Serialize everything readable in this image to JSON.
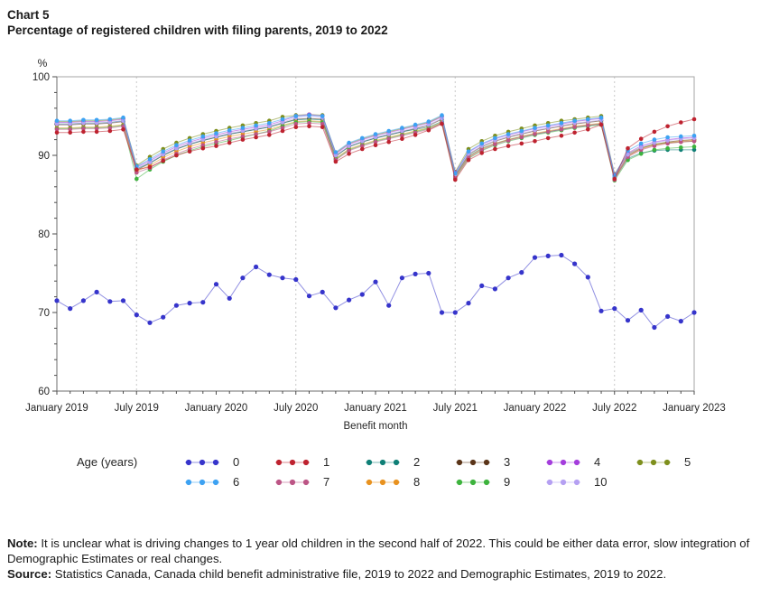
{
  "header": {
    "chart_label": "Chart 5",
    "title": "Percentage of registered children with filing parents, 2019 to 2022"
  },
  "chart_data": {
    "type": "line",
    "title": "Percentage of registered children with filing parents, 2019 to 2022",
    "xlabel": "Benefit month",
    "ylabel": "%",
    "ylim": [
      60,
      100
    ],
    "y_major_ticks": [
      60,
      70,
      80,
      90,
      100
    ],
    "y_minor_step": 2,
    "x_start": "January 2019",
    "x_end": "January 2023",
    "x_frequency": "monthly",
    "x_months_span": 48,
    "x_tick_labels": [
      "January 2019",
      "July 2019",
      "January 2020",
      "July 2020",
      "January 2021",
      "July 2021",
      "January 2022",
      "July 2022",
      "January 2023"
    ],
    "x_label_months": [
      0,
      6,
      12,
      18,
      24,
      30,
      36,
      42,
      48
    ],
    "gridline_months": [
      6,
      18,
      30,
      42
    ],
    "grid": "vertical-dashed-july",
    "legend_title": "Age (years)",
    "legend_position": "bottom",
    "series": [
      {
        "label": "0",
        "color": "#3634cb",
        "values": [
          71.5,
          70.5,
          71.5,
          72.6,
          71.4,
          71.5,
          69.7,
          68.7,
          69.4,
          70.9,
          71.2,
          71.3,
          73.6,
          71.8,
          74.4,
          75.8,
          74.8,
          74.4,
          74.2,
          72.1,
          72.6,
          70.6,
          71.6,
          72.3,
          73.9,
          70.9,
          74.4,
          74.9,
          75.0,
          70.0,
          70.0,
          71.2,
          73.4,
          73.0,
          74.4,
          75.1,
          77.0,
          77.2,
          77.3,
          76.2,
          74.5,
          70.2,
          70.5,
          69.0,
          70.3,
          68.1,
          69.5,
          68.9,
          70.0
        ]
      },
      {
        "label": "1",
        "color": "#be222f",
        "values": [
          92.9,
          92.9,
          93.0,
          93.0,
          93.1,
          93.3,
          88.2,
          88.5,
          89.3,
          90.0,
          90.5,
          90.9,
          91.2,
          91.6,
          92.0,
          92.3,
          92.6,
          93.1,
          93.6,
          93.7,
          93.6,
          89.2,
          90.2,
          90.8,
          91.3,
          91.7,
          92.1,
          92.6,
          93.2,
          94.0,
          86.9,
          89.4,
          90.3,
          90.8,
          91.2,
          91.5,
          91.8,
          92.2,
          92.5,
          92.9,
          93.3,
          93.9,
          87.0,
          90.9,
          92.1,
          93.0,
          93.7,
          94.2,
          94.6
        ]
      },
      {
        "label": "2",
        "color": "#0f7f76",
        "values": [
          94.0,
          94.0,
          94.1,
          94.1,
          94.2,
          94.4,
          88.3,
          89.0,
          90.0,
          90.8,
          91.4,
          91.9,
          92.3,
          92.7,
          93.0,
          93.3,
          93.6,
          94.1,
          94.5,
          94.6,
          94.5,
          89.9,
          91.1,
          91.7,
          92.2,
          92.6,
          93.0,
          93.3,
          93.6,
          94.3,
          87.4,
          89.9,
          90.9,
          91.5,
          92.0,
          92.4,
          92.7,
          93.0,
          93.3,
          93.6,
          93.8,
          94.0,
          87.1,
          89.6,
          90.3,
          90.6,
          90.7,
          90.7,
          90.7
        ]
      },
      {
        "label": "3",
        "color": "#5a3418",
        "values": [
          93.9,
          93.9,
          94.0,
          94.0,
          94.1,
          94.3,
          88.1,
          89.0,
          90.0,
          90.8,
          91.4,
          91.9,
          92.3,
          92.7,
          93.0,
          93.3,
          93.6,
          94.1,
          94.6,
          94.7,
          94.6,
          89.9,
          91.1,
          91.7,
          92.2,
          92.6,
          93.0,
          93.4,
          93.8,
          94.6,
          87.5,
          90.1,
          91.1,
          91.8,
          92.3,
          92.7,
          93.1,
          93.4,
          93.7,
          94.0,
          94.2,
          94.4,
          87.2,
          90.0,
          90.9,
          91.4,
          91.7,
          91.9,
          92.0
        ]
      },
      {
        "label": "4",
        "color": "#a43ddc",
        "values": [
          94.2,
          94.2,
          94.3,
          94.3,
          94.4,
          94.6,
          88.5,
          89.3,
          90.3,
          91.1,
          91.7,
          92.2,
          92.6,
          93.0,
          93.3,
          93.6,
          93.9,
          94.4,
          95.0,
          95.2,
          95.0,
          90.2,
          91.4,
          92.0,
          92.5,
          92.9,
          93.3,
          93.7,
          94.1,
          94.9,
          87.8,
          90.4,
          91.4,
          92.1,
          92.6,
          93.0,
          93.4,
          93.7,
          94.0,
          94.3,
          94.5,
          94.7,
          87.5,
          90.3,
          91.2,
          91.7,
          92.0,
          92.2,
          92.3
        ]
      },
      {
        "label": "5",
        "color": "#7e8f1d",
        "values": [
          94.3,
          94.3,
          94.4,
          94.4,
          94.5,
          94.7,
          88.7,
          89.8,
          90.8,
          91.6,
          92.2,
          92.7,
          93.1,
          93.5,
          93.8,
          94.1,
          94.4,
          94.9,
          95.1,
          95.2,
          95.1,
          90.3,
          91.5,
          92.1,
          92.6,
          93.0,
          93.4,
          93.8,
          94.2,
          95.0,
          87.9,
          90.8,
          91.8,
          92.5,
          93.0,
          93.4,
          93.8,
          94.1,
          94.4,
          94.6,
          94.8,
          95.0,
          87.6,
          90.2,
          91.0,
          91.4,
          91.6,
          91.7,
          91.8
        ]
      },
      {
        "label": "6",
        "color": "#3da2f2",
        "values": [
          94.4,
          94.4,
          94.5,
          94.5,
          94.6,
          94.8,
          88.6,
          89.5,
          90.5,
          91.3,
          91.9,
          92.4,
          92.8,
          93.2,
          93.5,
          93.8,
          94.1,
          94.6,
          95.0,
          95.1,
          95.0,
          90.4,
          91.6,
          92.2,
          92.7,
          93.1,
          93.5,
          93.9,
          94.3,
          95.1,
          87.7,
          90.5,
          91.5,
          92.2,
          92.7,
          93.1,
          93.5,
          93.8,
          94.1,
          94.4,
          94.6,
          94.8,
          87.4,
          90.6,
          91.5,
          92.0,
          92.3,
          92.4,
          92.5
        ]
      },
      {
        "label": "7",
        "color": "#bc5585",
        "values": [
          93.3,
          93.3,
          93.4,
          93.4,
          93.5,
          93.7,
          87.8,
          88.4,
          89.4,
          90.2,
          90.8,
          91.3,
          91.7,
          92.1,
          92.4,
          92.7,
          93.0,
          93.5,
          94.0,
          94.1,
          94.0,
          89.4,
          90.6,
          91.2,
          91.7,
          92.1,
          92.5,
          92.9,
          93.3,
          94.1,
          87.2,
          89.7,
          90.7,
          91.4,
          91.9,
          92.3,
          92.7,
          93.0,
          93.3,
          93.6,
          93.8,
          94.0,
          86.9,
          89.8,
          90.7,
          91.2,
          91.5,
          91.7,
          91.8
        ]
      },
      {
        "label": "8",
        "color": "#e8921f",
        "values": [
          93.5,
          93.5,
          93.6,
          93.6,
          93.7,
          93.9,
          88.0,
          88.7,
          89.7,
          90.5,
          91.1,
          91.6,
          92.0,
          92.4,
          92.7,
          93.0,
          93.3,
          93.8,
          94.3,
          94.4,
          94.3,
          89.6,
          90.8,
          91.4,
          91.9,
          92.3,
          92.7,
          93.1,
          93.5,
          94.2,
          87.3,
          89.8,
          90.8,
          91.5,
          92.0,
          92.4,
          92.8,
          93.1,
          93.4,
          93.7,
          93.9,
          94.1,
          87.0,
          89.9,
          90.8,
          91.3,
          91.6,
          91.8,
          91.9
        ]
      },
      {
        "label": "9",
        "color": "#3db33d",
        "values": [
          93.4,
          93.4,
          93.5,
          93.5,
          93.6,
          93.8,
          87.0,
          88.2,
          89.2,
          90.0,
          90.6,
          91.1,
          91.5,
          91.9,
          92.3,
          92.7,
          93.1,
          93.7,
          94.2,
          94.3,
          94.2,
          89.5,
          90.7,
          91.3,
          91.8,
          92.2,
          92.6,
          93.0,
          93.4,
          94.1,
          87.1,
          89.6,
          90.6,
          91.3,
          91.8,
          92.2,
          92.6,
          92.9,
          93.2,
          93.5,
          93.7,
          93.9,
          86.8,
          89.4,
          90.2,
          90.7,
          90.9,
          91.0,
          91.1
        ]
      },
      {
        "label": "10",
        "color": "#b5a0f2",
        "values": [
          94.0,
          94.0,
          94.1,
          94.1,
          94.2,
          94.4,
          88.4,
          89.1,
          90.1,
          90.9,
          91.5,
          92.0,
          92.4,
          92.8,
          93.1,
          93.4,
          93.7,
          94.2,
          94.8,
          95.0,
          94.8,
          90.0,
          91.2,
          91.8,
          92.3,
          92.7,
          93.1,
          93.5,
          93.9,
          94.7,
          87.6,
          90.2,
          91.2,
          91.9,
          92.4,
          92.8,
          93.2,
          93.5,
          93.8,
          94.1,
          94.3,
          94.5,
          87.3,
          90.1,
          91.0,
          91.6,
          91.9,
          92.1,
          92.2
        ]
      }
    ]
  },
  "notes": {
    "note_label": "Note:",
    "note_text": " It is unclear what is driving changes to 1 year old children in the second half of 2022. This could be either data error, slow integration of Demographic Estimates or real changes.",
    "source_label": "Source:",
    "source_text": " Statistics Canada, Canada child benefit administrative file, 2019 to 2022 and Demographic Estimates, 2019 to 2022."
  }
}
